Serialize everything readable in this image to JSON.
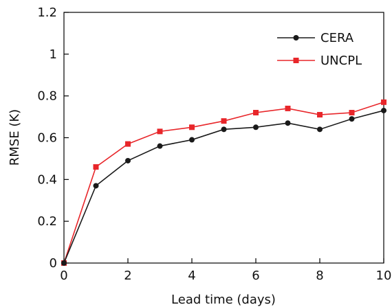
{
  "chart_data": {
    "type": "line",
    "xlabel": "Lead time (days)",
    "ylabel": "RMSE (K)",
    "xlim": [
      0,
      10
    ],
    "ylim": [
      0,
      1.2
    ],
    "xticks": [
      0,
      2,
      4,
      6,
      8,
      10
    ],
    "yticks": [
      0,
      0.2,
      0.4,
      0.6,
      0.8,
      1,
      1.2
    ],
    "xtick_labels": [
      "0",
      "2",
      "4",
      "6",
      "8",
      "10"
    ],
    "ytick_labels": [
      "0",
      "0.2",
      "0.4",
      "0.6",
      "0.8",
      "1",
      "1.2"
    ],
    "x": [
      0,
      1,
      2,
      3,
      4,
      5,
      6,
      7,
      8,
      9,
      10
    ],
    "grid": false,
    "legend_position": "top-right",
    "series": [
      {
        "name": "CERA",
        "color": "#1a1a1a",
        "marker": "circle",
        "values": [
          0,
          0.37,
          0.49,
          0.56,
          0.59,
          0.64,
          0.65,
          0.67,
          0.64,
          0.69,
          0.73
        ]
      },
      {
        "name": "UNCPL",
        "color": "#e8262a",
        "marker": "square",
        "values": [
          0,
          0.46,
          0.57,
          0.63,
          0.65,
          0.68,
          0.72,
          0.74,
          0.71,
          0.72,
          0.77
        ]
      }
    ]
  }
}
